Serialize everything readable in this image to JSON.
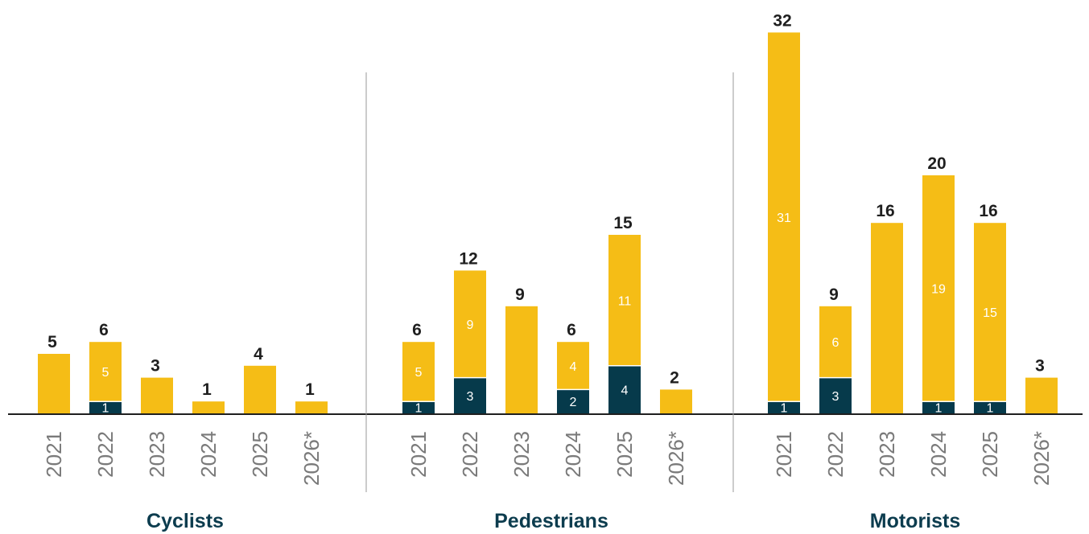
{
  "chart_data": {
    "type": "bar",
    "stacked": true,
    "colors": {
      "upper": "#f5bd16",
      "lower": "#063a4b"
    },
    "groups": [
      {
        "name": "Cyclists",
        "categories": [
          "2021",
          "2022",
          "2023",
          "2024",
          "2025",
          "2026*"
        ],
        "totals": [
          5,
          6,
          3,
          1,
          4,
          1
        ],
        "lower": [
          null,
          1,
          null,
          null,
          null,
          null
        ],
        "upper": [
          null,
          5,
          null,
          null,
          null,
          null
        ]
      },
      {
        "name": "Pedestrians",
        "categories": [
          "2021",
          "2022",
          "2023",
          "2024",
          "2025",
          "2026*"
        ],
        "totals": [
          6,
          12,
          9,
          6,
          15,
          2
        ],
        "lower": [
          1,
          3,
          null,
          2,
          4,
          null
        ],
        "upper": [
          5,
          9,
          null,
          4,
          11,
          null
        ]
      },
      {
        "name": "Motorists",
        "categories": [
          "2021",
          "2022",
          "2023",
          "2024",
          "2025",
          "2026*"
        ],
        "totals": [
          32,
          9,
          16,
          20,
          16,
          3
        ],
        "lower": [
          1,
          3,
          null,
          1,
          1,
          null
        ],
        "upper": [
          31,
          6,
          null,
          19,
          15,
          null
        ]
      }
    ],
    "ylim": [
      0,
      32
    ]
  }
}
